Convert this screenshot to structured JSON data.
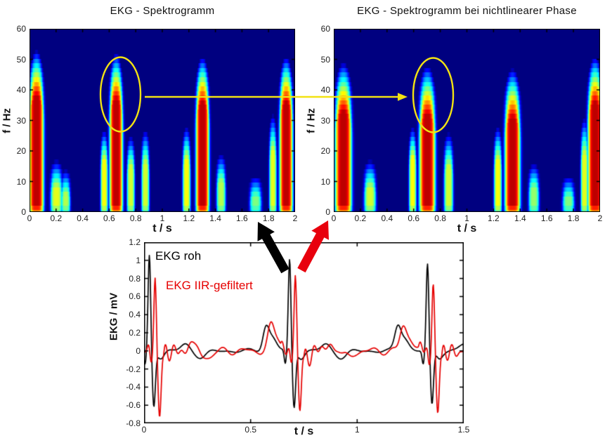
{
  "page": {
    "background": "#ffffff"
  },
  "annotations": {
    "highlight_color": "#f2e213",
    "raw_arrow_color": "#000000",
    "filtered_arrow_color": "#e8000d"
  },
  "chart_data": [
    {
      "id": "spectrogram_raw",
      "type": "heatmap",
      "title": "EKG - Spektrogramm",
      "xlabel": "t / s",
      "ylabel": "f / Hz",
      "xlim": [
        0,
        2
      ],
      "ylim": [
        0,
        60
      ],
      "xticks": [
        "0",
        "0.2",
        "0.4",
        "0.6",
        "0.8",
        "1",
        "1.2",
        "1.4",
        "1.6",
        "1.8",
        "2"
      ],
      "yticks": [
        "0",
        "10",
        "20",
        "30",
        "40",
        "50",
        "60"
      ],
      "colormap": "jet",
      "background_value_color": "#00008c",
      "bursts": [
        {
          "t": 0.05,
          "fmax": 53,
          "amp": 0.94,
          "width": 0.055,
          "fade": 15
        },
        {
          "t": 0.2,
          "fmax": 17,
          "amp": 0.6,
          "width": 0.045,
          "fade": 9
        },
        {
          "t": 0.27,
          "fmax": 14,
          "amp": 0.55,
          "width": 0.035,
          "fade": 8
        },
        {
          "t": 0.56,
          "fmax": 27,
          "amp": 0.62,
          "width": 0.028,
          "fade": 10
        },
        {
          "t": 0.65,
          "fmax": 52,
          "amp": 0.94,
          "width": 0.05,
          "fade": 15
        },
        {
          "t": 0.76,
          "fmax": 25,
          "amp": 0.58,
          "width": 0.03,
          "fade": 10
        },
        {
          "t": 0.87,
          "fmax": 27,
          "amp": 0.58,
          "width": 0.03,
          "fade": 11
        },
        {
          "t": 1.18,
          "fmax": 28,
          "amp": 0.62,
          "width": 0.03,
          "fade": 11
        },
        {
          "t": 1.3,
          "fmax": 51,
          "amp": 0.94,
          "width": 0.05,
          "fade": 15
        },
        {
          "t": 1.44,
          "fmax": 19,
          "amp": 0.55,
          "width": 0.035,
          "fade": 9
        },
        {
          "t": 1.7,
          "fmax": 12,
          "amp": 0.5,
          "width": 0.045,
          "fade": 7
        },
        {
          "t": 1.83,
          "fmax": 32,
          "amp": 0.6,
          "width": 0.028,
          "fade": 12
        },
        {
          "t": 1.93,
          "fmax": 51,
          "amp": 0.94,
          "width": 0.05,
          "fade": 15
        }
      ]
    },
    {
      "id": "spectrogram_nonlinear_phase",
      "type": "heatmap",
      "title": "EKG - Spektrogramm bei nichtlinearer Phase",
      "xlabel": "t / s",
      "ylabel": "f / Hz",
      "xlim": [
        0,
        2
      ],
      "ylim": [
        0,
        60
      ],
      "xticks": [
        "0",
        "0.2",
        "0.4",
        "0.6",
        "0.8",
        "1",
        "1.2",
        "1.4",
        "1.6",
        "1.8",
        "2"
      ],
      "yticks": [
        "0",
        "10",
        "20",
        "30",
        "40",
        "50",
        "60"
      ],
      "colormap": "jet",
      "background_value_color": "#00008c",
      "bursts": [
        {
          "t": 0.07,
          "fmax": 49,
          "amp": 0.94,
          "width": 0.062,
          "fade": 16
        },
        {
          "t": 0.27,
          "fmax": 17,
          "amp": 0.58,
          "width": 0.045,
          "fade": 9
        },
        {
          "t": 0.59,
          "fmax": 28,
          "amp": 0.62,
          "width": 0.028,
          "fade": 10
        },
        {
          "t": 0.7,
          "fmax": 48,
          "amp": 0.94,
          "width": 0.06,
          "fade": 16
        },
        {
          "t": 0.86,
          "fmax": 26,
          "amp": 0.58,
          "width": 0.035,
          "fade": 11
        },
        {
          "t": 1.23,
          "fmax": 28,
          "amp": 0.62,
          "width": 0.03,
          "fade": 11
        },
        {
          "t": 1.34,
          "fmax": 47,
          "amp": 0.94,
          "width": 0.058,
          "fade": 16
        },
        {
          "t": 1.5,
          "fmax": 16,
          "amp": 0.52,
          "width": 0.04,
          "fade": 8
        },
        {
          "t": 1.76,
          "fmax": 12,
          "amp": 0.5,
          "width": 0.045,
          "fade": 7
        },
        {
          "t": 1.88,
          "fmax": 31,
          "amp": 0.6,
          "width": 0.028,
          "fade": 12
        },
        {
          "t": 1.96,
          "fmax": 51,
          "amp": 0.94,
          "width": 0.055,
          "fade": 15
        }
      ]
    },
    {
      "id": "ekg_time_traces",
      "type": "line",
      "title": "",
      "xlabel": "t / s",
      "ylabel": "EKG / mV",
      "xlim": [
        0,
        1.5
      ],
      "ylim": [
        -0.8,
        1.2
      ],
      "xticks": [
        "0",
        "0.5",
        "1",
        "1.5"
      ],
      "yticks": [
        "-0.8",
        "-0.6",
        "-0.4",
        "-0.2",
        "0",
        "0.2",
        "0.4",
        "0.6",
        "0.8",
        "1",
        "1.2"
      ],
      "series": [
        {
          "name": "EKG roh",
          "color": "#000000",
          "ringing": false,
          "beats": [
            {
              "t": 0.025,
              "r": 1.05,
              "s": -0.6
            },
            {
              "t": 0.683,
              "r": 1.0,
              "s": -0.62
            },
            {
              "t": 1.33,
              "r": 0.95,
              "s": -0.6
            }
          ],
          "twaves": [
            {
              "t": 0.571,
              "amp": 0.27
            },
            {
              "t": 1.19,
              "amp": 0.27
            }
          ]
        },
        {
          "name": "EKG IIR-gefiltert",
          "color": "#e60000",
          "ringing": true,
          "beats": [
            {
              "t": 0.052,
              "r": 0.82,
              "s": -0.7
            },
            {
              "t": 0.71,
              "r": 0.79,
              "s": -0.69
            },
            {
              "t": 1.357,
              "r": 0.77,
              "s": -0.68
            }
          ],
          "twaves": [
            {
              "t": 0.594,
              "amp": 0.26
            },
            {
              "t": 1.214,
              "amp": 0.26
            }
          ]
        }
      ]
    }
  ]
}
